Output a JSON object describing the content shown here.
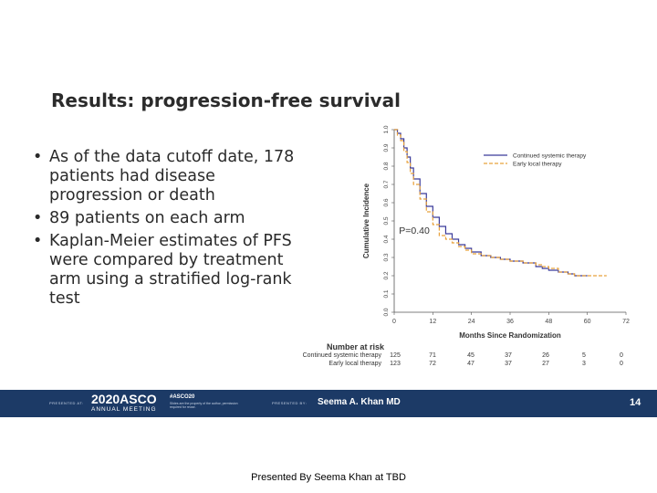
{
  "slide": {
    "title": "Results: progression-free survival",
    "bullets": [
      "As of the data cutoff date, 178 patients had disease progression or death",
      "89 patients on each arm",
      "Kaplan-Meier estimates of PFS were compared by treatment arm using a stratified log-rank test"
    ],
    "bullet_glyph": "•"
  },
  "chart_data": {
    "type": "line",
    "title": "",
    "xlabel": "Months Since Randomization",
    "ylabel": "Cumulative Incidence",
    "xlim": [
      0,
      72
    ],
    "ylim": [
      0,
      1
    ],
    "x_ticks": [
      "0",
      "12",
      "24",
      "36",
      "48",
      "60",
      "72"
    ],
    "y_ticks": [
      "0.0",
      "0.1",
      "0.2",
      "0.3",
      "0.4",
      "0.5",
      "0.6",
      "0.7",
      "0.8",
      "0.9",
      "1.0"
    ],
    "legend_position": "top-right",
    "annotation": "P=0.40",
    "series": [
      {
        "name": "Continued systemic therapy",
        "color": "#3a3a9a",
        "style": "solid",
        "points": [
          [
            0,
            1.0
          ],
          [
            1,
            0.98
          ],
          [
            2,
            0.95
          ],
          [
            3,
            0.9
          ],
          [
            4,
            0.85
          ],
          [
            5,
            0.79
          ],
          [
            6,
            0.73
          ],
          [
            8,
            0.65
          ],
          [
            10,
            0.58
          ],
          [
            12,
            0.52
          ],
          [
            14,
            0.47
          ],
          [
            16,
            0.43
          ],
          [
            18,
            0.4
          ],
          [
            20,
            0.37
          ],
          [
            22,
            0.35
          ],
          [
            24,
            0.33
          ],
          [
            27,
            0.31
          ],
          [
            30,
            0.3
          ],
          [
            33,
            0.29
          ],
          [
            36,
            0.28
          ],
          [
            40,
            0.27
          ],
          [
            44,
            0.25
          ],
          [
            46,
            0.24
          ],
          [
            48,
            0.23
          ],
          [
            51,
            0.22
          ],
          [
            54,
            0.21
          ],
          [
            56,
            0.2
          ],
          [
            60,
            0.2
          ]
        ]
      },
      {
        "name": "Early local therapy",
        "color": "#e8a23c",
        "style": "dashed",
        "points": [
          [
            0,
            1.0
          ],
          [
            1,
            0.97
          ],
          [
            2,
            0.94
          ],
          [
            3,
            0.88
          ],
          [
            4,
            0.82
          ],
          [
            5,
            0.76
          ],
          [
            6,
            0.7
          ],
          [
            8,
            0.62
          ],
          [
            10,
            0.55
          ],
          [
            12,
            0.48
          ],
          [
            14,
            0.42
          ],
          [
            16,
            0.4
          ],
          [
            18,
            0.38
          ],
          [
            20,
            0.36
          ],
          [
            22,
            0.34
          ],
          [
            24,
            0.32
          ],
          [
            27,
            0.31
          ],
          [
            30,
            0.3
          ],
          [
            33,
            0.29
          ],
          [
            36,
            0.28
          ],
          [
            40,
            0.27
          ],
          [
            44,
            0.26
          ],
          [
            46,
            0.25
          ],
          [
            48,
            0.24
          ],
          [
            51,
            0.22
          ],
          [
            54,
            0.21
          ],
          [
            56,
            0.2
          ],
          [
            60,
            0.2
          ],
          [
            66,
            0.2
          ]
        ]
      }
    ]
  },
  "risk_table": {
    "title": "Number at risk",
    "rows": [
      {
        "label": "Continued systemic therapy",
        "values": [
          "125",
          "71",
          "45",
          "37",
          "26",
          "5",
          "0"
        ]
      },
      {
        "label": "Early local therapy",
        "values": [
          "123",
          "72",
          "47",
          "37",
          "27",
          "3",
          "0"
        ]
      }
    ]
  },
  "footer": {
    "presented_at": "PRESENTED AT:",
    "meeting_logo": "2020ASCO",
    "meeting_sub": "ANNUAL MEETING",
    "hashtag": "#ASCO20",
    "hashtag_note": "Slides are the property of the author, permission required for reuse.",
    "presented_by": "PRESENTED BY:",
    "presenter": "Seema A. Khan MD",
    "page_number": "14",
    "band_color": "#1c3a66"
  },
  "caption": "Presented By Seema Khan at TBD"
}
